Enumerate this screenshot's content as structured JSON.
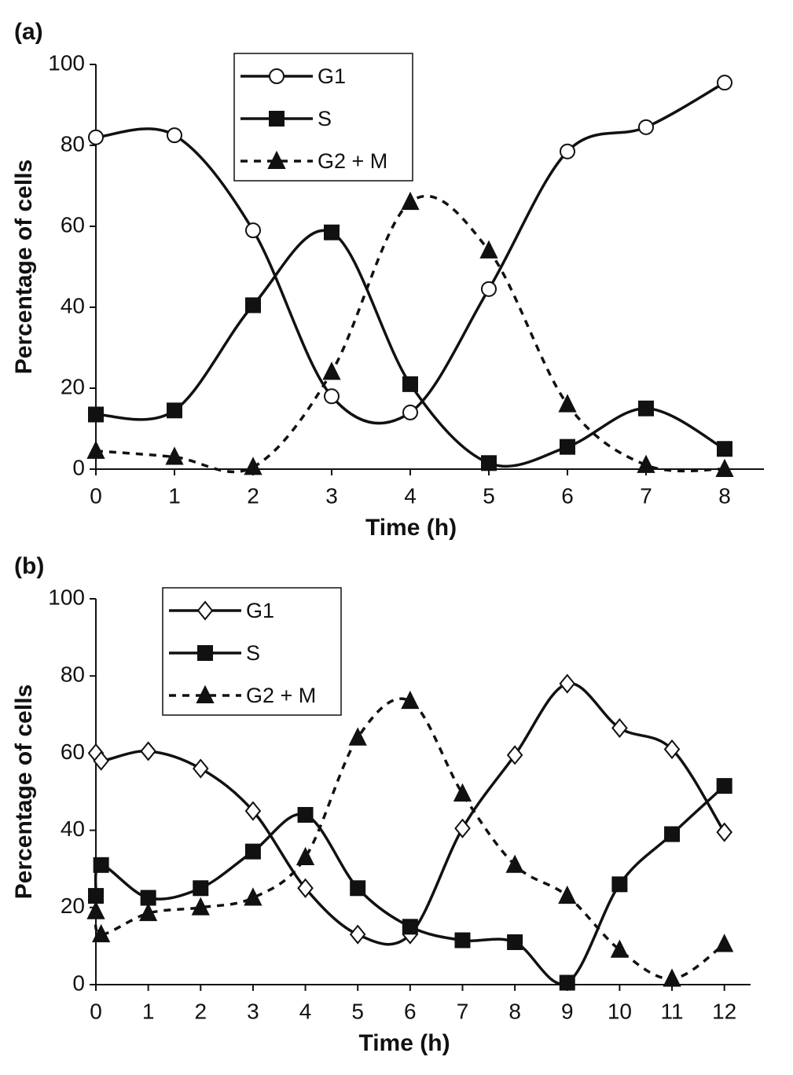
{
  "chart_data": [
    {
      "type": "line",
      "label": "(a)",
      "x_label": "Time (h)",
      "y_label": "Percentage of cells",
      "x": [
        0,
        1,
        2,
        3,
        4,
        5,
        6,
        7,
        8
      ],
      "xlim": [
        0,
        8.5
      ],
      "xticks": [
        0,
        1,
        2,
        3,
        4,
        5,
        6,
        7,
        8
      ],
      "ylim": [
        0,
        100
      ],
      "yticks": [
        0,
        20,
        40,
        60,
        80,
        100
      ],
      "legend": "upper center",
      "series": [
        {
          "name": "G1",
          "color": "#111111",
          "marker": "circle",
          "line_style": "solid",
          "values": [
            82,
            82.5,
            59,
            18,
            14,
            44.5,
            78.5,
            84.5,
            95.5
          ]
        },
        {
          "name": "S",
          "color": "#111111",
          "marker": "square",
          "line_style": "solid",
          "values": [
            13.5,
            14.5,
            40.5,
            58.5,
            21,
            1.5,
            5.5,
            15,
            5
          ]
        },
        {
          "name": "G2 + M",
          "color": "#111111",
          "marker": "triangle",
          "line_style": "dashed",
          "values": [
            4.5,
            3,
            0.5,
            24,
            66,
            54,
            16,
            1,
            0
          ]
        }
      ]
    },
    {
      "type": "line",
      "label": "(b)",
      "x_label": "Time (h)",
      "y_label": "Percentage of cells",
      "x": [
        0,
        0.1,
        1,
        2,
        3,
        4,
        5,
        6,
        7,
        8,
        9,
        10,
        11,
        12
      ],
      "xlim": [
        0,
        12.5
      ],
      "xticks": [
        0,
        1,
        2,
        3,
        4,
        5,
        6,
        7,
        8,
        9,
        10,
        11,
        12
      ],
      "ylim": [
        0,
        100
      ],
      "yticks": [
        0,
        20,
        40,
        60,
        80,
        100
      ],
      "legend": "upper left",
      "series": [
        {
          "name": "G1",
          "color": "#111111",
          "marker": "diamond",
          "line_style": "solid",
          "values": [
            60,
            58,
            60.5,
            56,
            45,
            25,
            13,
            13,
            40.5,
            59.5,
            78,
            66.5,
            61,
            39.5
          ]
        },
        {
          "name": "S",
          "color": "#111111",
          "marker": "square",
          "line_style": "solid",
          "values": [
            23,
            31,
            22.5,
            25,
            34.5,
            44,
            25,
            15,
            11.5,
            11,
            0.5,
            26,
            39,
            51.5
          ]
        },
        {
          "name": "G2 + M",
          "color": "#111111",
          "marker": "triangle",
          "line_style": "dashed",
          "values": [
            19,
            13,
            18.5,
            20,
            22.5,
            33,
            64,
            73.5,
            49.5,
            31,
            23,
            9,
            1.5,
            10.5
          ]
        }
      ]
    }
  ]
}
